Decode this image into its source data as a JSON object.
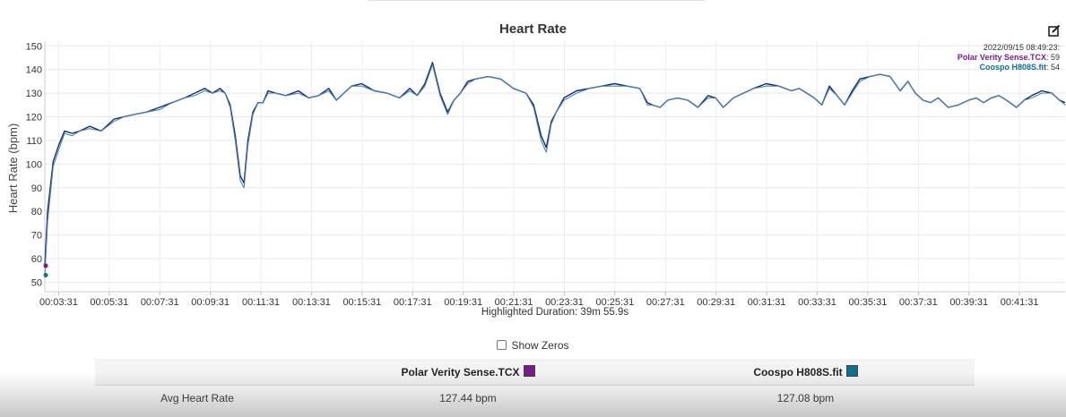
{
  "chart_data": {
    "type": "line",
    "title": "Heart Rate",
    "ylabel": "Heart Rate (bpm)",
    "xlabel": "",
    "ylim": [
      46,
      152
    ],
    "xlim_minutes": [
      2.97,
      43.32
    ],
    "yticks": [
      50,
      60,
      70,
      80,
      90,
      100,
      110,
      120,
      130,
      140,
      150
    ],
    "xticks": [
      "00:03:31",
      "00:05:31",
      "00:07:31",
      "00:09:31",
      "00:11:31",
      "00:13:31",
      "00:15:31",
      "00:17:31",
      "00:19:31",
      "00:21:31",
      "00:23:31",
      "00:25:31",
      "00:27:31",
      "00:29:31",
      "00:31:31",
      "00:33:31",
      "00:35:31",
      "00:37:31",
      "00:39:31",
      "00:41:31"
    ],
    "grid": true,
    "legend": "top-right",
    "x_minutes": [
      2.97,
      3.08,
      3.3,
      3.52,
      3.75,
      4.05,
      4.35,
      4.75,
      5.2,
      5.7,
      6.1,
      6.5,
      7.0,
      7.5,
      8.0,
      8.5,
      8.9,
      9.3,
      9.6,
      9.9,
      10.1,
      10.3,
      10.5,
      10.7,
      10.85,
      11.0,
      11.2,
      11.4,
      11.6,
      11.8,
      12.1,
      12.5,
      13.0,
      13.4,
      13.8,
      14.2,
      14.5,
      14.8,
      15.1,
      15.5,
      16.0,
      16.5,
      17.0,
      17.4,
      17.7,
      18.0,
      18.3,
      18.6,
      18.9,
      19.15,
      19.4,
      19.7,
      20.0,
      20.5,
      21.0,
      21.5,
      22.0,
      22.3,
      22.6,
      22.8,
      23.0,
      23.2,
      23.5,
      24.0,
      24.5,
      25.0,
      25.5,
      26.0,
      26.5,
      26.8,
      27.0,
      27.3,
      27.6,
      28.0,
      28.4,
      28.8,
      29.2,
      29.5,
      29.8,
      30.2,
      30.6,
      31.0,
      31.5,
      32.0,
      32.5,
      32.8,
      33.1,
      33.4,
      33.7,
      34.0,
      34.3,
      34.6,
      34.9,
      35.2,
      35.6,
      36.0,
      36.4,
      36.8,
      37.1,
      37.4,
      37.7,
      38.0,
      38.3,
      38.7,
      39.1,
      39.5,
      39.8,
      40.1,
      40.4,
      40.7,
      41.0,
      41.4,
      41.7,
      42.0,
      42.4,
      42.8,
      43.1,
      43.32
    ],
    "series": [
      {
        "name": "Polar Verity Sense.TCX",
        "color": "#0f2f6a",
        "values": [
          57,
          80,
          101,
          108,
          114,
          113,
          114,
          116,
          114,
          119,
          120,
          121,
          122,
          124,
          126,
          128,
          130,
          132,
          130,
          132,
          130,
          125,
          112,
          95,
          92,
          110,
          122,
          126,
          126,
          131,
          130,
          129,
          131,
          128,
          129,
          132,
          127,
          130,
          133,
          134,
          131,
          130,
          128,
          132,
          129,
          134,
          143,
          130,
          122,
          127,
          130,
          135,
          136,
          137,
          136,
          132,
          130,
          125,
          112,
          107,
          118,
          122,
          128,
          131,
          132,
          133,
          134,
          133,
          132,
          126,
          125,
          124,
          127,
          128,
          127,
          124,
          129,
          128,
          124,
          128,
          130,
          132,
          134,
          133,
          131,
          132,
          130,
          128,
          125,
          133,
          129,
          125,
          131,
          136,
          137,
          138,
          137,
          131,
          135,
          130,
          127,
          126,
          128,
          124,
          125,
          127,
          128,
          126,
          128,
          129,
          127,
          124,
          127,
          129,
          131,
          130,
          127,
          126
        ]
      },
      {
        "name": "Coospo H808S.fit",
        "color": "#4f7fb8",
        "values": [
          53,
          76,
          99,
          106,
          113,
          112,
          114,
          115,
          114,
          118,
          120,
          121,
          122,
          123,
          126,
          128,
          129,
          131,
          130,
          131,
          130,
          124,
          110,
          93,
          90,
          108,
          121,
          126,
          126,
          130,
          130,
          129,
          130,
          128,
          129,
          131,
          127,
          130,
          133,
          133,
          131,
          130,
          128,
          131,
          129,
          133,
          142,
          129,
          121,
          127,
          130,
          134,
          136,
          137,
          136,
          132,
          130,
          124,
          110,
          105,
          117,
          122,
          127,
          130,
          132,
          133,
          133,
          133,
          132,
          125,
          125,
          124,
          127,
          128,
          127,
          124,
          128,
          128,
          124,
          128,
          130,
          132,
          133,
          133,
          131,
          132,
          130,
          128,
          125,
          132,
          129,
          125,
          130,
          135,
          137,
          138,
          137,
          131,
          135,
          130,
          127,
          126,
          128,
          124,
          125,
          127,
          128,
          126,
          128,
          129,
          127,
          124,
          127,
          128,
          130,
          130,
          127,
          125
        ]
      }
    ],
    "tooltip": {
      "timestamp": "2022/09/15 08:49:23:",
      "entries": [
        {
          "name": "Polar Verity Sense.TCX",
          "value": "59"
        },
        {
          "name": "Coospo H808S.fit",
          "value": "54"
        }
      ]
    }
  },
  "highlight": {
    "label": "Highlighted Duration: 39m 55.9s"
  },
  "controls": {
    "show_zeros_label": "Show Zeros",
    "show_zeros_checked": false
  },
  "stats_table": {
    "headers": [
      "",
      "Polar Verity Sense.TCX",
      "Coospo H808S.fit"
    ],
    "swatch_colors": [
      "#7b1a8c",
      "#0f6f8e"
    ],
    "rows": [
      {
        "label": "Avg Heart Rate",
        "values": [
          "127.44 bpm",
          "127.08 bpm"
        ]
      }
    ]
  },
  "icons": {
    "edit": "edit-icon"
  }
}
